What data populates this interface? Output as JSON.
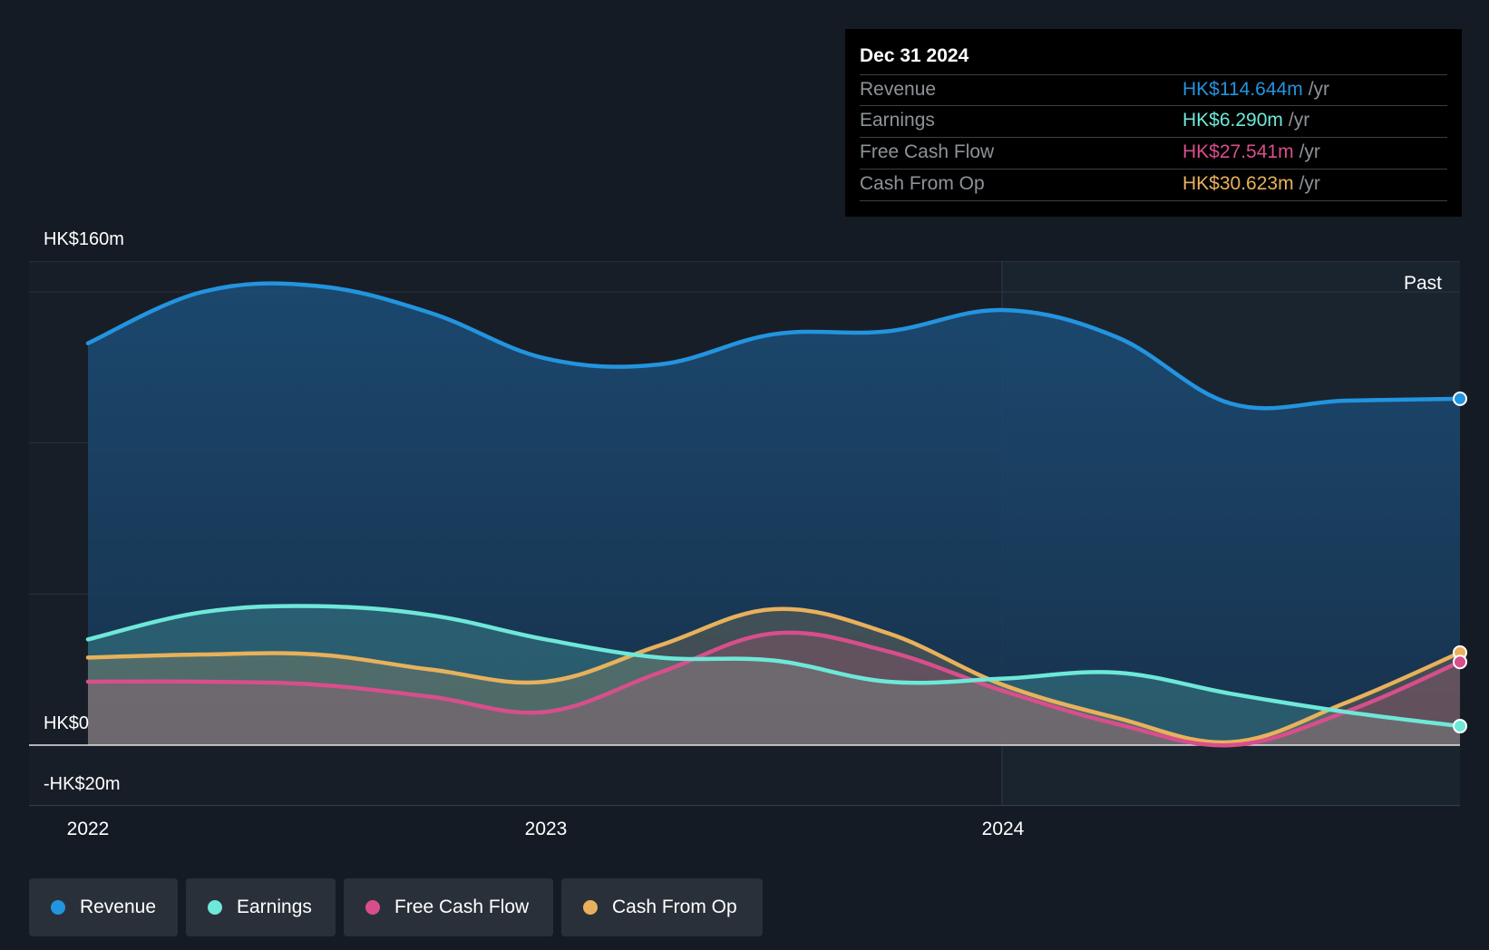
{
  "tooltip": {
    "date": "Dec 31 2024",
    "rows": [
      {
        "label": "Revenue",
        "value": "HK$114.644m",
        "unit": "/yr",
        "color": "#2394df"
      },
      {
        "label": "Earnings",
        "value": "HK$6.290m",
        "unit": "/yr",
        "color": "#6ee8d8"
      },
      {
        "label": "Free Cash Flow",
        "value": "HK$27.541m",
        "unit": "/yr",
        "color": "#d84e8c"
      },
      {
        "label": "Cash From Op",
        "value": "HK$30.623m",
        "unit": "/yr",
        "color": "#e8b15c"
      }
    ]
  },
  "chart_data": {
    "type": "area",
    "y_tick_labels": [
      "HK$160m",
      "HK$0",
      "-HK$20m"
    ],
    "x_tick_labels": [
      "2022",
      "2023",
      "2024"
    ],
    "past_label": "Past",
    "ylim": [
      -20,
      160
    ],
    "x_range": [
      2022.0,
      2025.0
    ],
    "grid": true,
    "colors": {
      "Revenue": "#2394df",
      "Earnings": "#6ee8d8",
      "Free Cash Flow": "#d84e8c",
      "Cash From Op": "#e8b15c"
    },
    "series": [
      {
        "name": "Revenue",
        "x": [
          2022.0,
          2022.25,
          2022.5,
          2022.75,
          2023.0,
          2023.25,
          2023.5,
          2023.75,
          2024.0,
          2024.25,
          2024.5,
          2024.75,
          2025.0
        ],
        "values": [
          133,
          150,
          152,
          143,
          128,
          126,
          136,
          137,
          144,
          135,
          113,
          114,
          114.644
        ]
      },
      {
        "name": "Earnings",
        "x": [
          2022.0,
          2022.25,
          2022.5,
          2022.75,
          2023.0,
          2023.25,
          2023.5,
          2023.75,
          2024.0,
          2024.25,
          2024.5,
          2024.75,
          2025.0
        ],
        "values": [
          35,
          44,
          46,
          43,
          35,
          29,
          28,
          21,
          22,
          24,
          17,
          11,
          6.29
        ]
      },
      {
        "name": "Free Cash Flow",
        "x": [
          2022.0,
          2022.25,
          2022.5,
          2022.75,
          2023.0,
          2023.25,
          2023.5,
          2023.75,
          2024.0,
          2024.25,
          2024.5,
          2024.75,
          2025.0
        ],
        "values": [
          21,
          21,
          20,
          16,
          11,
          24,
          37,
          31,
          18,
          7,
          0,
          11,
          27.541
        ]
      },
      {
        "name": "Cash From Op",
        "x": [
          2022.0,
          2022.25,
          2022.5,
          2022.75,
          2023.0,
          2023.25,
          2023.5,
          2023.75,
          2024.0,
          2024.25,
          2024.5,
          2024.75,
          2025.0
        ],
        "values": [
          29,
          30,
          30,
          25,
          21,
          33,
          45,
          37,
          20,
          9,
          1,
          14,
          30.623
        ]
      }
    ]
  },
  "legend": [
    {
      "label": "Revenue",
      "color": "#2394df"
    },
    {
      "label": "Earnings",
      "color": "#6ee8d8"
    },
    {
      "label": "Free Cash Flow",
      "color": "#d84e8c"
    },
    {
      "label": "Cash From Op",
      "color": "#e8b15c"
    }
  ]
}
